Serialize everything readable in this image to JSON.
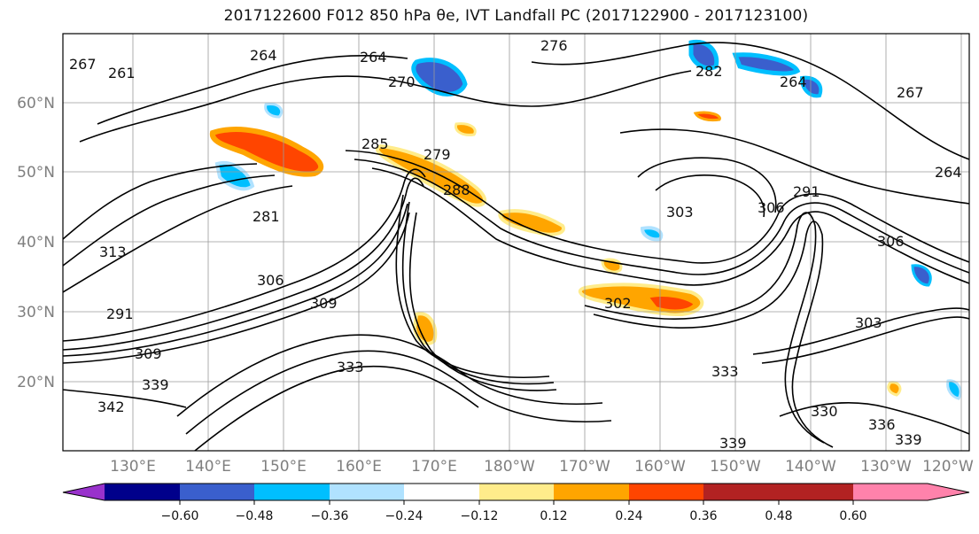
{
  "title": "2017122600 F012 850 hPa θe, IVT Landfall PC (2017122900 - 2017123100)",
  "lat_labels": [
    "60°N",
    "50°N",
    "40°N",
    "30°N",
    "20°N"
  ],
  "lon_labels": [
    "130°E",
    "140°E",
    "150°E",
    "160°E",
    "170°E",
    "180°W",
    "170°W",
    "160°W",
    "150°W",
    "140°W",
    "130°W",
    "120°W"
  ],
  "colorbar": {
    "ticks": [
      "−0.60",
      "−0.48",
      "−0.36",
      "−0.24",
      "−0.12",
      "0.12",
      "0.24",
      "0.36",
      "0.48",
      "0.60"
    ],
    "colors": [
      "#9932cc",
      "#00008b",
      "#3a5fcd",
      "#00bfff",
      "#b0e2ff",
      "#ffffff",
      "#ffec8b",
      "#ffa500",
      "#ff4500",
      "#b22222",
      "#ff82ab"
    ]
  },
  "contour_labels": [
    {
      "text": "264"
    },
    {
      "text": "264"
    },
    {
      "text": "276"
    },
    {
      "text": "270"
    },
    {
      "text": "282"
    },
    {
      "text": "267"
    },
    {
      "text": "261"
    },
    {
      "text": "264"
    },
    {
      "text": "267"
    },
    {
      "text": "285"
    },
    {
      "text": "279"
    },
    {
      "text": "288"
    },
    {
      "text": "303"
    },
    {
      "text": "291"
    },
    {
      "text": "306"
    },
    {
      "text": "264"
    },
    {
      "text": "313"
    },
    {
      "text": "281"
    },
    {
      "text": "306"
    },
    {
      "text": "309"
    },
    {
      "text": "291"
    },
    {
      "text": "309"
    },
    {
      "text": "302"
    },
    {
      "text": "303"
    },
    {
      "text": "306"
    },
    {
      "text": "333"
    },
    {
      "text": "339"
    },
    {
      "text": "342"
    },
    {
      "text": "330"
    },
    {
      "text": "339"
    },
    {
      "text": "336"
    },
    {
      "text": "339"
    },
    {
      "text": "333"
    }
  ],
  "fields": {
    "contour_color": "#000000",
    "shade_positive": [
      "#ffec8b",
      "#ffa500",
      "#ff4500"
    ],
    "shade_negative": [
      "#b0e2ff",
      "#00bfff",
      "#3a5fcd"
    ]
  }
}
